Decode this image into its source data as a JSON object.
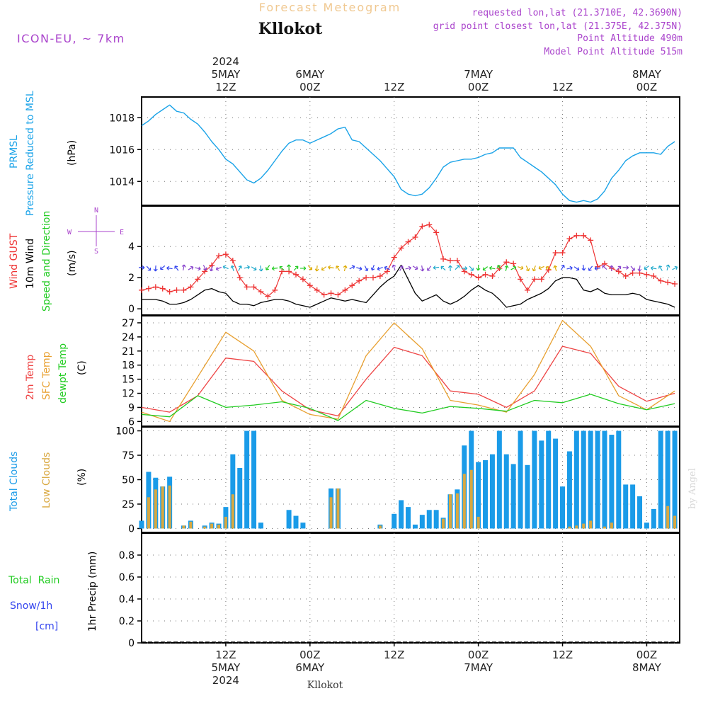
{
  "header": {
    "app_title": "Forecast Meteogram",
    "location": "Kllokot",
    "model": "ICON-EU, ~ 7km",
    "requested": "requested lon,lat (21.3710E, 42.3690N)",
    "gridpoint": "grid point closest lon,lat (21.375E, 42.375N)",
    "point_alt": "Point Altitude 490m",
    "model_alt": "Model Point Altitude 515m",
    "watermark": "by Angel",
    "footer_location": "Kllokot"
  },
  "colors": {
    "pressure": "#1aa3e8",
    "gust": "#ee3333",
    "wind": "#000000",
    "temp2m": "#ee4444",
    "sfc": "#e8a030",
    "dewpt": "#22cc22",
    "total_cloud": "#1a9be8",
    "low_cloud": "#d9a840",
    "rain": "#22cc22",
    "snow": "#3344ee",
    "meta": "#aa44cc"
  },
  "time_axis": {
    "top_labels": [
      {
        "x": 12,
        "l1": "2024",
        "l2": "5MAY",
        "l3": "12Z"
      },
      {
        "x": 24,
        "l1": "",
        "l2": "6MAY",
        "l3": "00Z"
      },
      {
        "x": 36,
        "l1": "",
        "l2": "",
        "l3": "12Z"
      },
      {
        "x": 48,
        "l1": "",
        "l2": "7MAY",
        "l3": "00Z"
      },
      {
        "x": 60,
        "l1": "",
        "l2": "",
        "l3": "12Z"
      },
      {
        "x": 72,
        "l1": "",
        "l2": "8MAY",
        "l3": "00Z"
      }
    ],
    "bottom_labels": [
      {
        "x": 12,
        "l1": "12Z",
        "l2": "5MAY",
        "l3": "2024"
      },
      {
        "x": 24,
        "l1": "00Z",
        "l2": "6MAY",
        "l3": ""
      },
      {
        "x": 36,
        "l1": "12Z",
        "l2": "",
        "l3": ""
      },
      {
        "x": 48,
        "l1": "00Z",
        "l2": "7MAY",
        "l3": ""
      },
      {
        "x": 60,
        "l1": "12Z",
        "l2": "",
        "l3": ""
      },
      {
        "x": 72,
        "l1": "00Z",
        "l2": "8MAY",
        "l3": ""
      }
    ]
  },
  "chart_data": [
    {
      "type": "line",
      "panel": "pressure",
      "title": "PRMSL Pressure Reduced to MSL",
      "ylabel": "(hPa)",
      "xlim": [
        0,
        76.7
      ],
      "ylim": [
        1012.5,
        1019.3
      ],
      "yticks": [
        1014,
        1016,
        1018
      ],
      "x": [
        0,
        1,
        2,
        3,
        4,
        5,
        6,
        7,
        8,
        9,
        10,
        11,
        12,
        13,
        14,
        15,
        16,
        17,
        18,
        19,
        20,
        21,
        22,
        23,
        24,
        25,
        26,
        27,
        28,
        29,
        30,
        31,
        32,
        33,
        34,
        35,
        36,
        37,
        38,
        39,
        40,
        41,
        42,
        43,
        44,
        45,
        46,
        47,
        48,
        49,
        50,
        51,
        52,
        53,
        54,
        55,
        56,
        57,
        58,
        59,
        60,
        61,
        62,
        63,
        64,
        65,
        66,
        67,
        68,
        69,
        70,
        71,
        72,
        73,
        74,
        75,
        76
      ],
      "series": [
        {
          "name": "PRMSL",
          "values": [
            1017.5,
            1017.8,
            1018.2,
            1018.5,
            1018.8,
            1018.4,
            1018.3,
            1017.9,
            1017.6,
            1017.1,
            1016.5,
            1016.0,
            1015.4,
            1015.1,
            1014.6,
            1014.1,
            1013.9,
            1014.2,
            1014.7,
            1015.3,
            1015.9,
            1016.4,
            1016.6,
            1016.6,
            1016.4,
            1016.6,
            1016.8,
            1017.0,
            1017.3,
            1017.4,
            1016.6,
            1016.5,
            1016.1,
            1015.7,
            1015.3,
            1014.8,
            1014.3,
            1013.5,
            1013.2,
            1013.1,
            1013.2,
            1013.6,
            1014.2,
            1014.9,
            1015.2,
            1015.3,
            1015.4,
            1015.4,
            1015.5,
            1015.7,
            1015.8,
            1016.1,
            1016.1,
            1016.1,
            1015.5,
            1015.2,
            1014.9,
            1014.6,
            1014.2,
            1013.8,
            1013.2,
            1012.8,
            1012.7,
            1012.8,
            1012.7,
            1012.9,
            1013.4,
            1014.2,
            1014.7,
            1015.3,
            1015.6,
            1015.8,
            1015.8,
            1015.8,
            1015.7,
            1016.2,
            1016.5
          ]
        }
      ]
    },
    {
      "type": "line",
      "panel": "wind",
      "ylabel": "(m/s)",
      "xlim": [
        0,
        76.7
      ],
      "ylim": [
        -0.4,
        6.6
      ],
      "yticks": [
        0,
        2,
        4
      ],
      "x": [
        0,
        1,
        2,
        3,
        4,
        5,
        6,
        7,
        8,
        9,
        10,
        11,
        12,
        13,
        14,
        15,
        16,
        17,
        18,
        19,
        20,
        21,
        22,
        23,
        24,
        25,
        26,
        27,
        28,
        29,
        30,
        31,
        32,
        33,
        34,
        35,
        36,
        37,
        38,
        39,
        40,
        41,
        42,
        43,
        44,
        45,
        46,
        47,
        48,
        49,
        50,
        51,
        52,
        53,
        54,
        55,
        56,
        57,
        58,
        59,
        60,
        61,
        62,
        63,
        64,
        65,
        66,
        67,
        68,
        69,
        70,
        71,
        72,
        73,
        74,
        75,
        76
      ],
      "series": [
        {
          "name": "Wind GUST",
          "values": [
            1.2,
            1.3,
            1.4,
            1.3,
            1.1,
            1.2,
            1.2,
            1.4,
            1.9,
            2.4,
            2.8,
            3.4,
            3.5,
            3.1,
            2.0,
            1.4,
            1.4,
            1.1,
            0.8,
            1.2,
            2.4,
            2.4,
            2.2,
            1.9,
            1.5,
            1.2,
            0.9,
            1.0,
            0.9,
            1.2,
            1.5,
            1.8,
            2.0,
            2.0,
            2.1,
            2.4,
            3.3,
            3.9,
            4.3,
            4.6,
            5.3,
            5.4,
            4.9,
            3.2,
            3.1,
            3.1,
            2.4,
            2.2,
            2.0,
            2.2,
            2.1,
            2.6,
            3.0,
            2.9,
            1.9,
            1.2,
            1.9,
            1.9,
            2.5,
            3.6,
            3.6,
            4.5,
            4.7,
            4.7,
            4.4,
            2.7,
            2.9,
            2.6,
            2.4,
            2.1,
            2.3,
            2.3,
            2.2,
            2.1,
            1.8,
            1.7,
            1.6
          ]
        },
        {
          "name": "10m Wind",
          "values": [
            0.6,
            0.6,
            0.6,
            0.5,
            0.3,
            0.3,
            0.4,
            0.6,
            0.9,
            1.2,
            1.3,
            1.1,
            1.0,
            0.5,
            0.3,
            0.3,
            0.2,
            0.4,
            0.5,
            0.6,
            0.6,
            0.5,
            0.3,
            0.2,
            0.1,
            0.3,
            0.5,
            0.7,
            0.6,
            0.5,
            0.6,
            0.5,
            0.4,
            0.9,
            1.4,
            1.8,
            2.1,
            2.8,
            1.9,
            1.0,
            0.5,
            0.7,
            0.9,
            0.5,
            0.3,
            0.5,
            0.8,
            1.2,
            1.5,
            1.2,
            1.0,
            0.6,
            0.1,
            0.2,
            0.3,
            0.6,
            0.8,
            1.0,
            1.3,
            1.8,
            2.0,
            2.0,
            1.9,
            1.2,
            1.1,
            1.3,
            1.0,
            0.9,
            0.9,
            0.9,
            1.0,
            0.9,
            0.6,
            0.5,
            0.4,
            0.3,
            0.1
          ]
        }
      ],
      "wind_dir_legend": {
        "n": "N",
        "s": "S",
        "e": "E",
        "w": "W"
      }
    },
    {
      "type": "line",
      "panel": "temperature",
      "ylabel": "(C)",
      "xlim": [
        0,
        76.7
      ],
      "ylim": [
        5.0,
        28.5
      ],
      "yticks": [
        6,
        9,
        12,
        15,
        18,
        21,
        24,
        27
      ],
      "x": [
        0,
        4,
        8,
        12,
        16,
        20,
        24,
        28,
        32,
        36,
        40,
        44,
        48,
        52,
        56,
        60,
        64,
        68,
        72,
        76
      ],
      "series": [
        {
          "name": "2m Temp",
          "values": [
            9.0,
            8.0,
            11.5,
            19.5,
            18.8,
            12.5,
            8.5,
            7.2,
            15.0,
            21.8,
            20.0,
            12.5,
            11.8,
            9.0,
            12.5,
            22.0,
            20.5,
            13.5,
            10.3,
            12.0
          ]
        },
        {
          "name": "SFC Temp",
          "values": [
            8.0,
            6.0,
            15.5,
            25.0,
            21.0,
            10.5,
            7.5,
            6.5,
            20.0,
            27.0,
            21.5,
            10.5,
            9.5,
            8.0,
            16.0,
            27.5,
            22.0,
            11.5,
            8.5,
            12.5
          ]
        },
        {
          "name": "dewpt Temp",
          "values": [
            7.5,
            7.0,
            11.5,
            9.0,
            9.5,
            10.2,
            8.8,
            6.2,
            10.5,
            8.8,
            7.8,
            9.2,
            8.8,
            8.2,
            10.5,
            10.0,
            11.8,
            9.8,
            8.5,
            9.8
          ]
        }
      ]
    },
    {
      "type": "bar",
      "panel": "clouds",
      "ylabel": "(%)",
      "xlim": [
        0,
        76.7
      ],
      "ylim": [
        -4,
        104
      ],
      "yticks": [
        0,
        25,
        50,
        75,
        100
      ],
      "x": [
        0,
        1,
        2,
        3,
        4,
        5,
        6,
        7,
        8,
        9,
        10,
        11,
        12,
        13,
        14,
        15,
        16,
        17,
        18,
        19,
        20,
        21,
        22,
        23,
        24,
        25,
        26,
        27,
        28,
        29,
        30,
        31,
        32,
        33,
        34,
        35,
        36,
        37,
        38,
        39,
        40,
        41,
        42,
        43,
        44,
        45,
        46,
        47,
        48,
        49,
        50,
        51,
        52,
        53,
        54,
        55,
        56,
        57,
        58,
        59,
        60,
        61,
        62,
        63,
        64,
        65,
        66,
        67,
        68,
        69,
        70,
        71,
        72,
        73,
        74,
        75,
        76
      ],
      "series": [
        {
          "name": "Total Clouds",
          "values": [
            8,
            58,
            52,
            43,
            53,
            0,
            3,
            8,
            0,
            3,
            6,
            5,
            22,
            76,
            62,
            100,
            100,
            6,
            0,
            0,
            0,
            19,
            13,
            6,
            0,
            0,
            0,
            41,
            41,
            0,
            0,
            0,
            0,
            0,
            4,
            0,
            15,
            29,
            22,
            4,
            14,
            19,
            19,
            11,
            35,
            40,
            85,
            100,
            68,
            70,
            76,
            100,
            76,
            66,
            100,
            65,
            100,
            90,
            100,
            92,
            43,
            79,
            100,
            100,
            100,
            100,
            100,
            96,
            100,
            45,
            45,
            33,
            6,
            20,
            100,
            100,
            100
          ]
        },
        {
          "name": "Low Clouds",
          "values": [
            0,
            32,
            40,
            43,
            44,
            0,
            3,
            7,
            0,
            2,
            5,
            4,
            12,
            35,
            0,
            0,
            0,
            0,
            0,
            0,
            0,
            0,
            0,
            0,
            0,
            0,
            0,
            32,
            41,
            0,
            0,
            0,
            0,
            0,
            3,
            0,
            0,
            0,
            0,
            0,
            0,
            0,
            0,
            10,
            35,
            36,
            56,
            60,
            12,
            0,
            0,
            0,
            0,
            0,
            0,
            0,
            0,
            0,
            0,
            0,
            0,
            2,
            3,
            5,
            8,
            0,
            2,
            6,
            0,
            0,
            0,
            0,
            0,
            0,
            0,
            23,
            13
          ]
        }
      ]
    },
    {
      "type": "bar",
      "panel": "precipitation",
      "ylabel": "1hr Precip (mm)",
      "xlim": [
        0,
        76.7
      ],
      "ylim": [
        0,
        1.0
      ],
      "yticks": [
        0,
        0.2,
        0.4,
        0.6,
        0.8
      ],
      "series": [
        {
          "name": "Total Rain",
          "values": [
            0
          ]
        },
        {
          "name": "Snow/1h [cm]",
          "values": [
            0
          ]
        }
      ]
    }
  ],
  "labels": {
    "pressure_l1": "PRMSL",
    "pressure_l2": "Pressure Reduced to MSL",
    "pressure_unit": "(hPa)",
    "wind_l1": "Wind GUST",
    "wind_l2": "10m Wind",
    "wind_l3": "Speed and Direction",
    "wind_unit": "(m/s)",
    "temp_l1": "2m Temp",
    "temp_l2": "SFC Temp",
    "temp_l3": "dewpt Temp",
    "temp_unit": "(C)",
    "cloud_l1": "Total Clouds",
    "cloud_l2": "Low Clouds",
    "cloud_unit": "(%)",
    "rain_l1": "Total  Rain",
    "rain_l2": "Snow/1h",
    "rain_l3": "[cm]",
    "precip_unit": "1hr Precip (mm)"
  }
}
